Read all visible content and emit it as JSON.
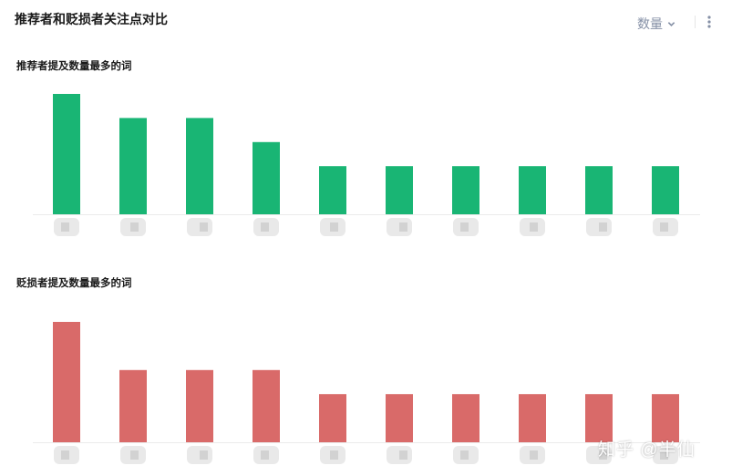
{
  "header": {
    "title": "推荐者和贬损者关注点对比",
    "metric_dropdown_label": "数量",
    "icons": {
      "dropdown": "chevron-down-icon",
      "more": "more-vertical-icon"
    }
  },
  "chart_data": [
    {
      "type": "bar",
      "title": "推荐者提及数量最多的词",
      "categories": [
        "",
        "",
        "",
        "",
        "",
        "",
        "",
        "",
        "",
        ""
      ],
      "values": [
        5,
        4,
        4,
        3,
        2,
        2,
        2,
        2,
        2,
        2
      ],
      "color": "#19b574",
      "ylim": [
        0,
        5
      ],
      "grid": false,
      "legend": "none",
      "note_categories_blurred": true
    },
    {
      "type": "bar",
      "title": "贬损者提及数量最多的词",
      "categories": [
        "",
        "",
        "",
        "",
        "",
        "",
        "",
        "",
        "",
        ""
      ],
      "values": [
        5,
        3,
        3,
        3,
        2,
        2,
        2,
        2,
        2,
        2
      ],
      "color": "#d96a69",
      "ylim": [
        0,
        5
      ],
      "grid": false,
      "legend": "none",
      "note_categories_blurred": true
    }
  ],
  "watermark": "知乎 @半仙"
}
